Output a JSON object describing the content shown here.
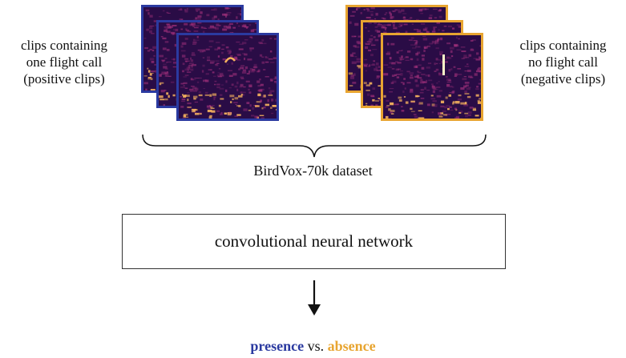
{
  "positive_caption": [
    "clips containing",
    "one flight call",
    "(positive clips)"
  ],
  "negative_caption": [
    "clips containing",
    "no flight call",
    "(negative clips)"
  ],
  "dataset_label": "BirdVox-70k dataset",
  "model_label": "convolutional neural network",
  "output": {
    "presence": "presence",
    "separator": " vs. ",
    "absence": "absence"
  },
  "colors": {
    "positive": "#2b3aa0",
    "negative": "#e8a531",
    "spectrogram_dark": "#2a0c46",
    "spectrogram_mid": "#a3317c",
    "spectrogram_bright": "#f5b25e"
  },
  "icons": {
    "arrow": "down-arrow-icon",
    "brace": "curly-brace-icon"
  }
}
